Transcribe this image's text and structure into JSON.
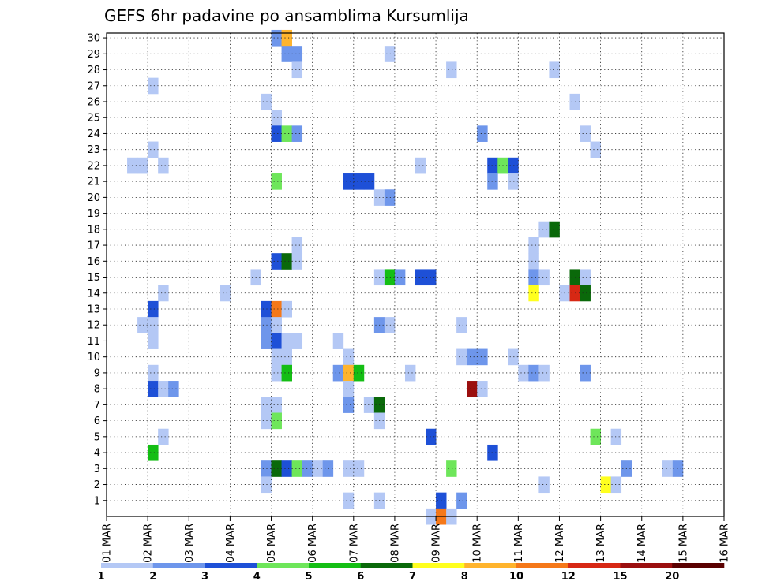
{
  "chart_data": {
    "type": "heatmap",
    "title": "GEFS 6hr padavine po ansamblima Kursumlija",
    "xlabel": "",
    "ylabel": "",
    "x_start": "01 MAR",
    "x_end": "16 MAR",
    "x_steps_per_day": 4,
    "x_ticks": [
      "01 MAR",
      "02 MAR",
      "03 MAR",
      "04 MAR",
      "05 MAR",
      "06 MAR",
      "07 MAR",
      "08 MAR",
      "09 MAR",
      "10 MAR",
      "11 MAR",
      "12 MAR",
      "13 MAR",
      "14 MAR",
      "15 MAR",
      "16 MAR"
    ],
    "y_ticks": [
      "1",
      "2",
      "3",
      "4",
      "5",
      "6",
      "7",
      "8",
      "9",
      "10",
      "11",
      "12",
      "13",
      "14",
      "15",
      "16",
      "17",
      "18",
      "19",
      "20",
      "21",
      "22",
      "23",
      "24",
      "25",
      "26",
      "27",
      "28",
      "29",
      "30"
    ],
    "ylim": [
      0,
      30
    ],
    "grid": true,
    "colorbar": {
      "labels": [
        "1",
        "2",
        "3",
        "4",
        "5",
        "6",
        "7",
        "8",
        "10",
        "12",
        "15",
        "20"
      ],
      "colors": [
        "#b4c8f5",
        "#6e96eb",
        "#1e50d7",
        "#6ee65a",
        "#14be14",
        "#0a690a",
        "#ffff1e",
        "#ffb42d",
        "#f57819",
        "#d72814",
        "#9b0f0f",
        "#5a0000"
      ]
    },
    "cells": [
      [
        16,
        30,
        1
      ],
      [
        17,
        30,
        7
      ],
      [
        17,
        29,
        1
      ],
      [
        18,
        29,
        1
      ],
      [
        27,
        29,
        0
      ],
      [
        18,
        28,
        0
      ],
      [
        33,
        28,
        0
      ],
      [
        43,
        28,
        0
      ],
      [
        64,
        28,
        1
      ],
      [
        80,
        28,
        0
      ],
      [
        4,
        27,
        0
      ],
      [
        80,
        27,
        0
      ],
      [
        15,
        26,
        0
      ],
      [
        80,
        26,
        0
      ],
      [
        45,
        26,
        0
      ],
      [
        16,
        25,
        0
      ],
      [
        78,
        25,
        1
      ],
      [
        79,
        25,
        7
      ],
      [
        80,
        25,
        1
      ],
      [
        82,
        25,
        1
      ],
      [
        83,
        25,
        1
      ],
      [
        84,
        25,
        0
      ],
      [
        85,
        25,
        0
      ],
      [
        16,
        24,
        2
      ],
      [
        17,
        24,
        3
      ],
      [
        18,
        24,
        1
      ],
      [
        36,
        24,
        1
      ],
      [
        46,
        24,
        0
      ],
      [
        79,
        24,
        2
      ],
      [
        80,
        24,
        0
      ],
      [
        86,
        24,
        0
      ],
      [
        4,
        23,
        0
      ],
      [
        47,
        23,
        0
      ],
      [
        82,
        23,
        0
      ],
      [
        2,
        22,
        0
      ],
      [
        3,
        22,
        0
      ],
      [
        5,
        22,
        0
      ],
      [
        30,
        22,
        0
      ],
      [
        37,
        22,
        2
      ],
      [
        38,
        22,
        3
      ],
      [
        39,
        22,
        2
      ],
      [
        64,
        22,
        0
      ],
      [
        81,
        22,
        0
      ],
      [
        88,
        22,
        0
      ],
      [
        16,
        21,
        3
      ],
      [
        23,
        21,
        2
      ],
      [
        24,
        21,
        2
      ],
      [
        25,
        21,
        2
      ],
      [
        37,
        21,
        1
      ],
      [
        39,
        21,
        0
      ],
      [
        78,
        21,
        0
      ],
      [
        79,
        21,
        2
      ],
      [
        80,
        21,
        7
      ],
      [
        81,
        21,
        3
      ],
      [
        82,
        21,
        1
      ],
      [
        83,
        21,
        2
      ],
      [
        84,
        21,
        8
      ],
      [
        85,
        21,
        7
      ],
      [
        86,
        21,
        0
      ],
      [
        26,
        20,
        0
      ],
      [
        27,
        20,
        1
      ],
      [
        77,
        20,
        0
      ],
      [
        83,
        19,
        2
      ],
      [
        84,
        19,
        6
      ],
      [
        42,
        18,
        0
      ],
      [
        43,
        18,
        5
      ],
      [
        84,
        18,
        0
      ],
      [
        85,
        18,
        0
      ],
      [
        18,
        17,
        0
      ],
      [
        41,
        17,
        0
      ],
      [
        16,
        16,
        2
      ],
      [
        17,
        16,
        5
      ],
      [
        18,
        16,
        0
      ],
      [
        41,
        16,
        0
      ],
      [
        78,
        16,
        2
      ],
      [
        79,
        16,
        10
      ],
      [
        80,
        16,
        1
      ],
      [
        81,
        16,
        1
      ],
      [
        82,
        16,
        1
      ],
      [
        83,
        16,
        3
      ],
      [
        14,
        15,
        0
      ],
      [
        26,
        15,
        0
      ],
      [
        27,
        15,
        4
      ],
      [
        28,
        15,
        1
      ],
      [
        30,
        15,
        2
      ],
      [
        31,
        15,
        2
      ],
      [
        41,
        15,
        1
      ],
      [
        42,
        15,
        0
      ],
      [
        45,
        15,
        5
      ],
      [
        46,
        15,
        0
      ],
      [
        5,
        14,
        0
      ],
      [
        11,
        14,
        0
      ],
      [
        41,
        14,
        6
      ],
      [
        44,
        14,
        0
      ],
      [
        45,
        14,
        9
      ],
      [
        46,
        14,
        5
      ],
      [
        84,
        14,
        0
      ],
      [
        85,
        14,
        1
      ],
      [
        86,
        14,
        0
      ],
      [
        87,
        14,
        1
      ],
      [
        4,
        13,
        2
      ],
      [
        15,
        13,
        2
      ],
      [
        16,
        13,
        8
      ],
      [
        17,
        13,
        0
      ],
      [
        77,
        13,
        0
      ],
      [
        83,
        13,
        2
      ],
      [
        84,
        13,
        1
      ],
      [
        3,
        12,
        0
      ],
      [
        4,
        12,
        0
      ],
      [
        15,
        12,
        1
      ],
      [
        16,
        12,
        0
      ],
      [
        26,
        12,
        1
      ],
      [
        27,
        12,
        0
      ],
      [
        34,
        12,
        0
      ],
      [
        76,
        12,
        1
      ],
      [
        77,
        12,
        1
      ],
      [
        78,
        12,
        5
      ],
      [
        79,
        12,
        0
      ],
      [
        80,
        12,
        0
      ],
      [
        4,
        11,
        0
      ],
      [
        15,
        11,
        1
      ],
      [
        16,
        11,
        2
      ],
      [
        17,
        11,
        0
      ],
      [
        18,
        11,
        0
      ],
      [
        22,
        11,
        0
      ],
      [
        76,
        11,
        1
      ],
      [
        77,
        11,
        2
      ],
      [
        78,
        11,
        3
      ],
      [
        79,
        11,
        4
      ],
      [
        16,
        10,
        0
      ],
      [
        17,
        10,
        0
      ],
      [
        23,
        10,
        0
      ],
      [
        34,
        10,
        0
      ],
      [
        35,
        10,
        1
      ],
      [
        36,
        10,
        1
      ],
      [
        39,
        10,
        0
      ],
      [
        80,
        10,
        2
      ],
      [
        86,
        10,
        0
      ],
      [
        87,
        10,
        1
      ],
      [
        4,
        9,
        0
      ],
      [
        16,
        9,
        0
      ],
      [
        17,
        9,
        4
      ],
      [
        22,
        9,
        1
      ],
      [
        23,
        9,
        7
      ],
      [
        24,
        9,
        4
      ],
      [
        29,
        9,
        0
      ],
      [
        40,
        9,
        0
      ],
      [
        41,
        9,
        1
      ],
      [
        42,
        9,
        0
      ],
      [
        46,
        9,
        1
      ],
      [
        4,
        8,
        2
      ],
      [
        5,
        8,
        0
      ],
      [
        6,
        8,
        1
      ],
      [
        23,
        8,
        0
      ],
      [
        35,
        8,
        10
      ],
      [
        36,
        8,
        0
      ],
      [
        15,
        7,
        0
      ],
      [
        16,
        7,
        0
      ],
      [
        23,
        7,
        1
      ],
      [
        25,
        7,
        0
      ],
      [
        26,
        7,
        5
      ],
      [
        15,
        6,
        0
      ],
      [
        16,
        6,
        3
      ],
      [
        26,
        6,
        0
      ],
      [
        5,
        5,
        0
      ],
      [
        31,
        5,
        2
      ],
      [
        47,
        5,
        3
      ],
      [
        49,
        5,
        0
      ],
      [
        4,
        4,
        4
      ],
      [
        37,
        4,
        2
      ],
      [
        15,
        3,
        1
      ],
      [
        16,
        3,
        5
      ],
      [
        17,
        3,
        2
      ],
      [
        18,
        3,
        3
      ],
      [
        19,
        3,
        1
      ],
      [
        20,
        3,
        0
      ],
      [
        21,
        3,
        1
      ],
      [
        23,
        3,
        0
      ],
      [
        24,
        3,
        0
      ],
      [
        33,
        3,
        3
      ],
      [
        50,
        3,
        1
      ],
      [
        54,
        3,
        0
      ],
      [
        55,
        3,
        1
      ],
      [
        15,
        2,
        0
      ],
      [
        42,
        2,
        0
      ],
      [
        48,
        2,
        6
      ],
      [
        49,
        2,
        0
      ],
      [
        23,
        1,
        0
      ],
      [
        26,
        1,
        0
      ],
      [
        32,
        1,
        2
      ],
      [
        34,
        1,
        1
      ],
      [
        31,
        0,
        0
      ],
      [
        32,
        0,
        8
      ],
      [
        33,
        0,
        0
      ]
    ]
  }
}
